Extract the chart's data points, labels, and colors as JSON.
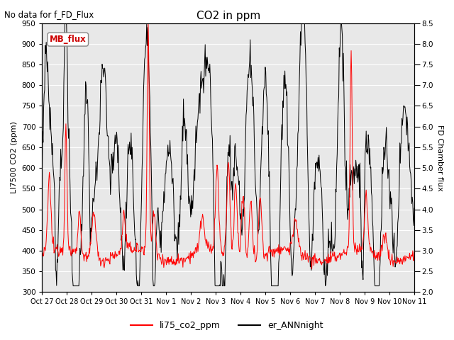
{
  "title": "CO2 in ppm",
  "top_left_text": "No data for f_FD_Flux",
  "ylabel_left": "LI7500 CO2 (ppm)",
  "ylabel_right": "FD Chamber flux",
  "ylim_left": [
    300,
    950
  ],
  "ylim_right": [
    2.0,
    8.5
  ],
  "yticks_left": [
    300,
    350,
    400,
    450,
    500,
    550,
    600,
    650,
    700,
    750,
    800,
    850,
    900,
    950
  ],
  "yticks_right": [
    2.0,
    2.5,
    3.0,
    3.5,
    4.0,
    4.5,
    5.0,
    5.5,
    6.0,
    6.5,
    7.0,
    7.5,
    8.0,
    8.5
  ],
  "xtick_labels": [
    "Oct 27",
    "Oct 28",
    "Oct 29",
    "Oct 30",
    "Oct 31",
    "Nov 1",
    "Nov 2",
    "Nov 3",
    "Nov 4",
    "Nov 5",
    "Nov 6",
    "Nov 7",
    "Nov 8",
    "Nov 9",
    "Nov 10",
    "Nov 11"
  ],
  "legend_label_red": "li75_co2_ppm",
  "legend_label_black": "er_ANNnight",
  "inset_label": "MB_flux",
  "background_color": "#ffffff",
  "plot_bg_color": "#e8e8e8",
  "grid_color": "#ffffff",
  "line_color_red": "#ff0000",
  "line_color_black": "#000000",
  "n_days": 15,
  "n_pts": 720,
  "red_base": 390,
  "red_noise_scale": 8,
  "black_noise_scale": 30
}
